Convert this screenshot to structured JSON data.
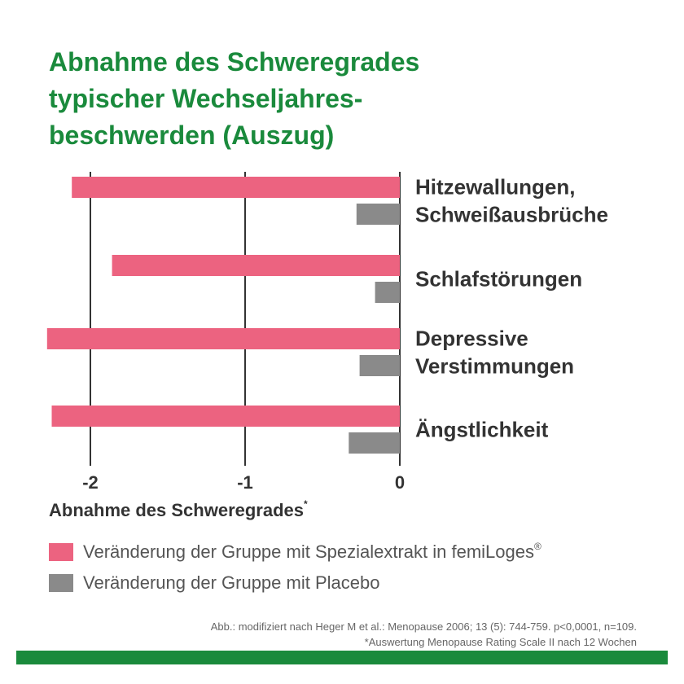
{
  "title_lines": [
    "Abnahme des Schweregrades",
    "typischer Wechseljahres-",
    "beschwerden (Auszug)"
  ],
  "colors": {
    "title": "#1a8a3c",
    "series_extract": "#ec6380",
    "series_placebo": "#8a8a8a",
    "grid": "#333333",
    "bottom_bar": "#1a8a3c"
  },
  "chart_data": {
    "type": "bar",
    "orientation": "horizontal",
    "categories": [
      [
        "Hitzewallungen,",
        "Schweißausbrüche"
      ],
      [
        "Schlafstörungen"
      ],
      [
        "Depressive",
        "Verstimmungen"
      ],
      [
        "Ängstlichkeit"
      ]
    ],
    "series": [
      {
        "name": "Veränderung der Gruppe mit Spezialextrakt in femiLoges",
        "values": [
          -2.12,
          -1.86,
          -2.28,
          -2.25
        ]
      },
      {
        "name": "Veränderung der Gruppe mit Placebo",
        "values": [
          -0.28,
          -0.16,
          -0.26,
          -0.33
        ]
      }
    ],
    "xlim": [
      -2.3,
      0
    ],
    "xticks": [
      -2,
      -1,
      0
    ],
    "tick_labels": [
      "-2",
      "-1",
      "0"
    ],
    "xlabel": "Abnahme des Schweregrades",
    "xlabel_mark": "*",
    "grid": true,
    "legend_position": "bottom"
  },
  "legend": {
    "items": [
      {
        "label": "Veränderung der Gruppe mit Spezialextrakt in femiLoges",
        "mark": "®"
      },
      {
        "label": "Veränderung der Gruppe mit Placebo",
        "mark": ""
      }
    ]
  },
  "source_lines": [
    "Abb.: modifiziert nach Heger M et al.: Menopause 2006; 13 (5): 744-759. p<0,0001, n=109.",
    "*Auswertung Menopause Rating Scale II nach 12 Wochen"
  ]
}
